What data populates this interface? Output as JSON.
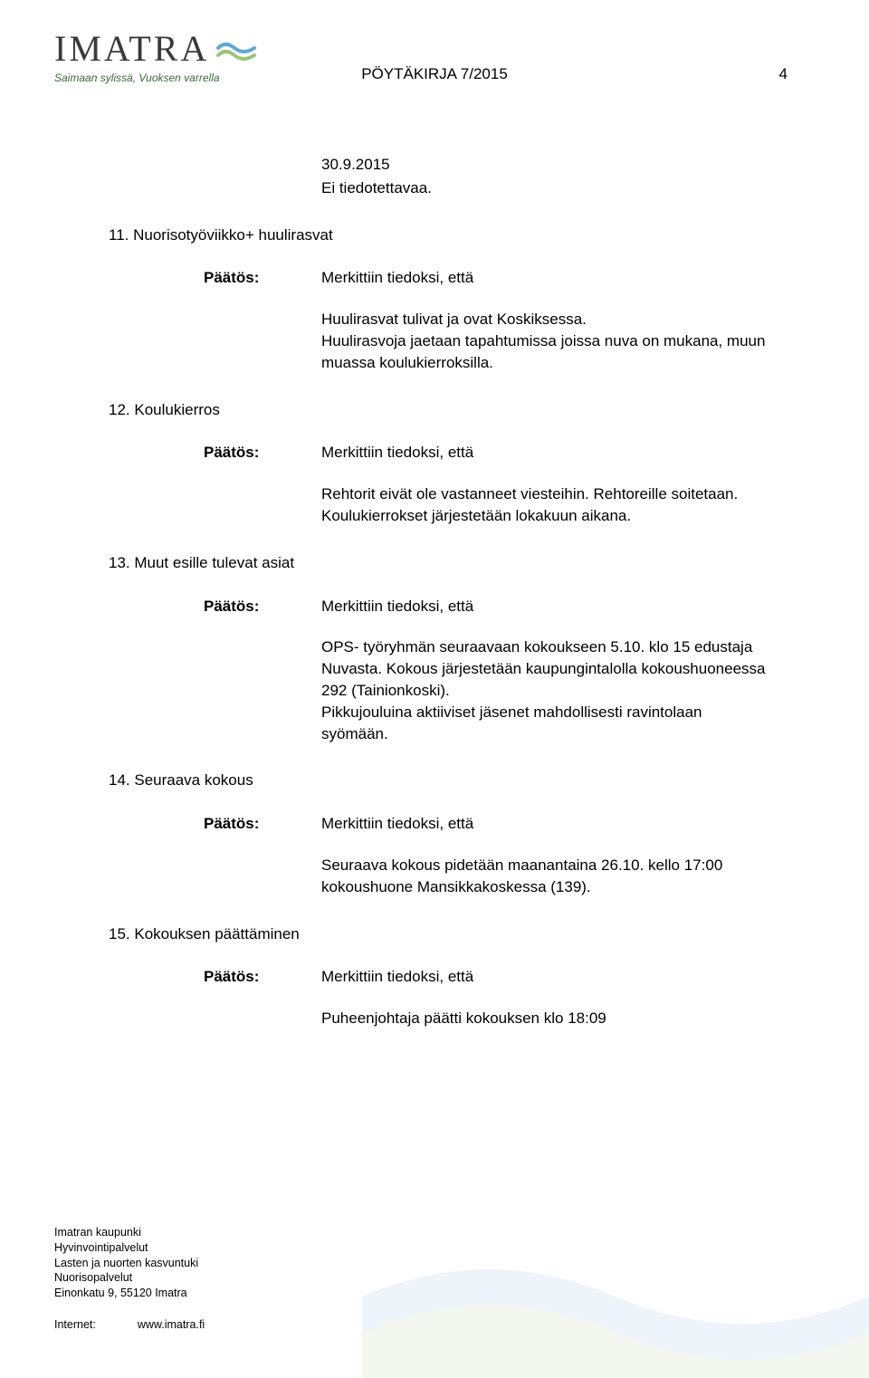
{
  "logo": {
    "text": "IMATRA",
    "tagline": "Saimaan sylissä, Vuoksen varrella"
  },
  "header": {
    "title": "PÖYTÄKIRJA 7/2015",
    "pageNumber": "4"
  },
  "topDate": "30.9.2015",
  "topBody": "Ei tiedotettavaa.",
  "sections": [
    {
      "heading": "11. Nuorisotyöviikko+ huulirasvat",
      "paatosLabel": "Päätös:",
      "paatosText": "Merkittiin tiedoksi, että",
      "result": "Huulirasvat tulivat ja ovat Koskiksessa.\nHuulirasvoja jaetaan tapahtumissa joissa nuva on mukana, muun muassa koulukierroksilla."
    },
    {
      "heading": "12. Koulukierros",
      "paatosLabel": "Päätös:",
      "paatosText": "Merkittiin tiedoksi, että",
      "result": "Rehtorit eivät ole vastanneet viesteihin. Rehtoreille soitetaan. Koulukierrokset järjestetään lokakuun aikana."
    },
    {
      "heading": "13. Muut esille tulevat asiat",
      "paatosLabel": "Päätös:",
      "paatosText": "Merkittiin tiedoksi, että",
      "result": "OPS- työryhmän seuraavaan kokoukseen 5.10. klo 15 edustaja Nuvasta. Kokous järjestetään kaupungintalolla kokoushuoneessa 292 (Tainionkoski).\nPikkujouluina aktiiviset jäsenet mahdollisesti ravintolaan syömään."
    },
    {
      "heading": "14. Seuraava kokous",
      "paatosLabel": "Päätös:",
      "paatosText": "Merkittiin tiedoksi, että",
      "result": "Seuraava kokous pidetään maanantaina 26.10. kello 17:00 kokoushuone Mansikkakoskessa (139)."
    },
    {
      "heading": "15. Kokouksen päättäminen",
      "paatosLabel": "Päätös:",
      "paatosText": "Merkittiin tiedoksi, että",
      "result": "Puheenjohtaja päätti kokouksen klo 18:09"
    }
  ],
  "footer": {
    "org1": "Imatran kaupunki",
    "org2": "Hyvinvointipalvelut",
    "org3": "Lasten ja nuorten kasvuntuki",
    "org4": "Nuorisopalvelut",
    "address": "Einonkatu 9, 55120 Imatra",
    "internetLabel": "Internet:",
    "internetUrl": "www.imatra.fi"
  },
  "colors": {
    "waveBlue": "#5fa8d3",
    "waveGreen": "#9cc47a",
    "taglineGreen": "#3a6b3a",
    "bgWaveBlue": "#e3eef6",
    "bgWaveGreen": "#eef3e5"
  }
}
